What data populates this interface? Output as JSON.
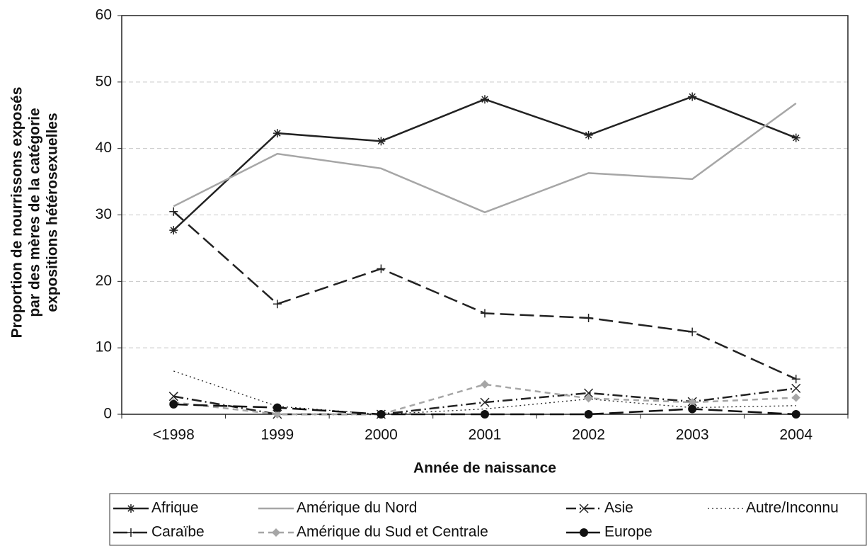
{
  "chart_data": {
    "type": "line",
    "ylabel": [
      "Proportion de nourrissons exposés",
      "par des mères de la catégorie",
      "expositions hétérosexuelles"
    ],
    "xlabel": "Année de naissance",
    "categories": [
      "<1998",
      "1999",
      "2000",
      "2001",
      "2002",
      "2003",
      "2004"
    ],
    "ylim": [
      0,
      60
    ],
    "yticks": [
      0,
      10,
      20,
      30,
      40,
      50,
      60
    ],
    "grid": true,
    "series": [
      {
        "name": "Afrique",
        "color": "#222222",
        "marker": "star",
        "dash": "solid",
        "values": [
          27.7,
          42.3,
          41.1,
          47.4,
          42.0,
          47.8,
          41.6
        ]
      },
      {
        "name": "Amérique du Nord",
        "color": "#a6a6a6",
        "marker": "none",
        "dash": "solid",
        "values": [
          31.3,
          39.2,
          37.0,
          30.4,
          36.3,
          35.4,
          46.8
        ]
      },
      {
        "name": "Asie",
        "color": "#222222",
        "marker": "x",
        "dash": "dashdot",
        "values": [
          2.7,
          0,
          0,
          1.8,
          3.2,
          1.9,
          3.9
        ]
      },
      {
        "name": "Autre/Inconnu",
        "color": "#222222",
        "marker": "none",
        "dash": "dot",
        "values": [
          6.5,
          1.2,
          0,
          0.8,
          2.3,
          1.0,
          1.3
        ]
      },
      {
        "name": "Caraïbe",
        "color": "#222222",
        "marker": "plus",
        "dash": "longdash",
        "values": [
          30.5,
          16.6,
          21.9,
          15.2,
          14.5,
          12.4,
          5.3
        ]
      },
      {
        "name": "Amérique du Sud et Centrale",
        "color": "#a6a6a6",
        "marker": "diamond",
        "dash": "dash",
        "values": [
          1.8,
          0,
          0,
          4.5,
          2.4,
          1.8,
          2.5
        ]
      },
      {
        "name": "Europe",
        "color": "#111111",
        "marker": "circle",
        "dash": "longdash",
        "values": [
          1.5,
          1.0,
          0,
          0,
          0,
          0.8,
          0
        ]
      }
    ]
  }
}
